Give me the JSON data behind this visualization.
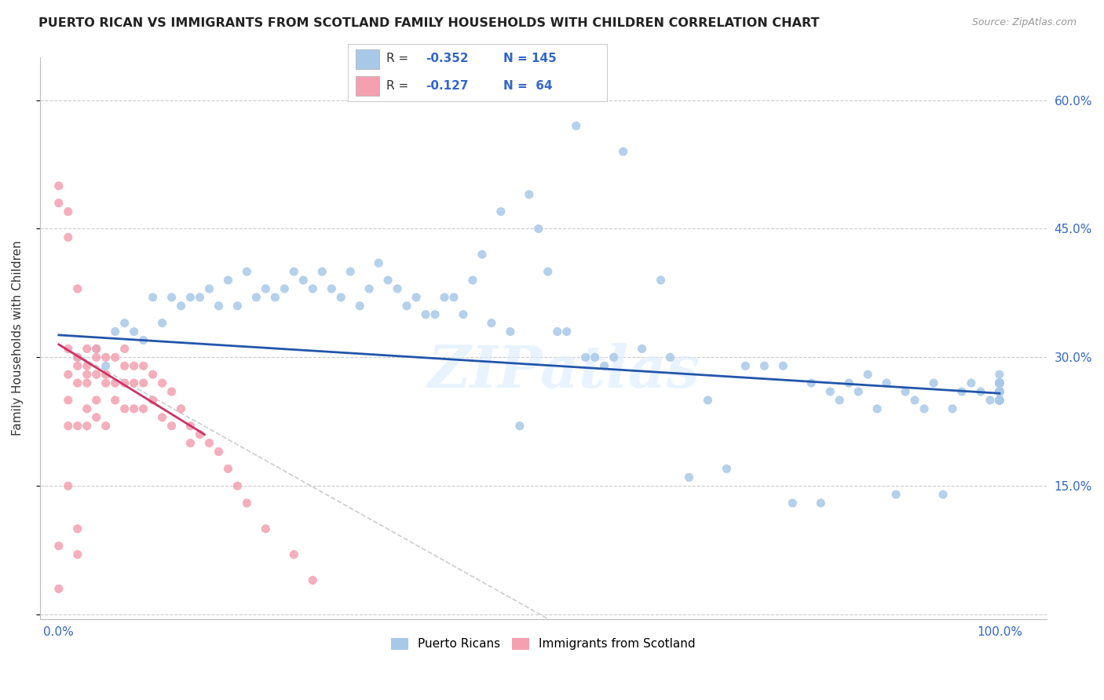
{
  "title": "PUERTO RICAN VS IMMIGRANTS FROM SCOTLAND FAMILY HOUSEHOLDS WITH CHILDREN CORRELATION CHART",
  "source": "Source: ZipAtlas.com",
  "ylabel": "Family Households with Children",
  "watermark": "ZIPatlas",
  "blue_color": "#a8c8e8",
  "pink_color": "#f4a0b0",
  "trendline_blue": "#2255aa",
  "trendline_pink": "#cc3366",
  "trendline_gray": "#cccccc",
  "yticks": [
    0.0,
    0.15,
    0.3,
    0.45,
    0.6
  ],
  "ytick_labels": [
    "",
    "15.0%",
    "30.0%",
    "45.0%",
    "60.0%"
  ],
  "xticks": [
    0.0,
    0.1,
    0.2,
    0.3,
    0.4,
    0.5,
    0.6,
    0.7,
    0.8,
    0.9,
    1.0
  ],
  "xtick_labels": [
    "0.0%",
    "",
    "",
    "",
    "",
    "",
    "",
    "",
    "",
    "",
    "100.0%"
  ],
  "xlim": [
    -0.02,
    1.05
  ],
  "ylim": [
    -0.005,
    0.65
  ],
  "blue_points_x": [
    0.02,
    0.04,
    0.05,
    0.06,
    0.07,
    0.08,
    0.09,
    0.1,
    0.11,
    0.12,
    0.13,
    0.14,
    0.15,
    0.16,
    0.17,
    0.18,
    0.19,
    0.2,
    0.21,
    0.22,
    0.23,
    0.24,
    0.25,
    0.26,
    0.27,
    0.28,
    0.29,
    0.3,
    0.31,
    0.32,
    0.33,
    0.34,
    0.35,
    0.36,
    0.37,
    0.38,
    0.39,
    0.4,
    0.41,
    0.42,
    0.43,
    0.44,
    0.45,
    0.46,
    0.47,
    0.48,
    0.49,
    0.5,
    0.51,
    0.52,
    0.53,
    0.54,
    0.55,
    0.56,
    0.57,
    0.58,
    0.59,
    0.6,
    0.62,
    0.64,
    0.65,
    0.67,
    0.69,
    0.71,
    0.73,
    0.75,
    0.77,
    0.78,
    0.8,
    0.81,
    0.82,
    0.83,
    0.84,
    0.85,
    0.86,
    0.87,
    0.88,
    0.89,
    0.9,
    0.91,
    0.92,
    0.93,
    0.94,
    0.95,
    0.96,
    0.97,
    0.98,
    0.99,
    1.0,
    1.0,
    1.0,
    1.0,
    1.0,
    1.0,
    1.0,
    1.0,
    1.0,
    1.0,
    1.0,
    1.0,
    1.0,
    1.0,
    1.0,
    1.0,
    1.0,
    1.0,
    1.0,
    1.0,
    1.0,
    1.0,
    1.0,
    1.0,
    1.0,
    1.0,
    1.0,
    1.0,
    1.0,
    1.0,
    1.0,
    1.0,
    1.0,
    1.0,
    1.0,
    1.0,
    1.0,
    1.0,
    1.0,
    1.0,
    1.0,
    1.0,
    1.0,
    1.0,
    1.0,
    1.0,
    1.0,
    1.0,
    1.0,
    1.0,
    1.0,
    1.0,
    1.0,
    1.0
  ],
  "blue_points_y": [
    0.3,
    0.31,
    0.29,
    0.33,
    0.34,
    0.33,
    0.32,
    0.37,
    0.34,
    0.37,
    0.36,
    0.37,
    0.37,
    0.38,
    0.36,
    0.39,
    0.36,
    0.4,
    0.37,
    0.38,
    0.37,
    0.38,
    0.4,
    0.39,
    0.38,
    0.4,
    0.38,
    0.37,
    0.4,
    0.36,
    0.38,
    0.41,
    0.39,
    0.38,
    0.36,
    0.37,
    0.35,
    0.35,
    0.37,
    0.37,
    0.35,
    0.39,
    0.42,
    0.34,
    0.47,
    0.33,
    0.22,
    0.49,
    0.45,
    0.4,
    0.33,
    0.33,
    0.57,
    0.3,
    0.3,
    0.29,
    0.3,
    0.54,
    0.31,
    0.39,
    0.3,
    0.16,
    0.25,
    0.17,
    0.29,
    0.29,
    0.29,
    0.13,
    0.27,
    0.13,
    0.26,
    0.25,
    0.27,
    0.26,
    0.28,
    0.24,
    0.27,
    0.14,
    0.26,
    0.25,
    0.24,
    0.27,
    0.14,
    0.24,
    0.26,
    0.27,
    0.26,
    0.25,
    0.28,
    0.27,
    0.26,
    0.26,
    0.27,
    0.25,
    0.26,
    0.27,
    0.26,
    0.27,
    0.26,
    0.25,
    0.26,
    0.25,
    0.27,
    0.25,
    0.26,
    0.27,
    0.26,
    0.27,
    0.25,
    0.26,
    0.26,
    0.25,
    0.27,
    0.26,
    0.25,
    0.26,
    0.27,
    0.25,
    0.26,
    0.25,
    0.26,
    0.25,
    0.25,
    0.27,
    0.26,
    0.25,
    0.27,
    0.26,
    0.25,
    0.26,
    0.27,
    0.25,
    0.26,
    0.25,
    0.26,
    0.27,
    0.25,
    0.26,
    0.25,
    0.27,
    0.26,
    0.25
  ],
  "pink_points_x": [
    0.0,
    0.0,
    0.0,
    0.01,
    0.01,
    0.01,
    0.01,
    0.01,
    0.01,
    0.02,
    0.02,
    0.02,
    0.02,
    0.02,
    0.02,
    0.02,
    0.03,
    0.03,
    0.03,
    0.03,
    0.03,
    0.03,
    0.04,
    0.04,
    0.04,
    0.04,
    0.04,
    0.05,
    0.05,
    0.05,
    0.05,
    0.06,
    0.06,
    0.06,
    0.07,
    0.07,
    0.07,
    0.07,
    0.08,
    0.08,
    0.08,
    0.09,
    0.09,
    0.09,
    0.1,
    0.1,
    0.11,
    0.11,
    0.12,
    0.12,
    0.13,
    0.14,
    0.14,
    0.15,
    0.16,
    0.17,
    0.18,
    0.19,
    0.2,
    0.22,
    0.25,
    0.27,
    0.01,
    0.0
  ],
  "pink_points_y": [
    0.5,
    0.48,
    0.08,
    0.44,
    0.31,
    0.28,
    0.25,
    0.22,
    0.15,
    0.38,
    0.3,
    0.29,
    0.27,
    0.22,
    0.1,
    0.07,
    0.31,
    0.29,
    0.28,
    0.27,
    0.24,
    0.22,
    0.31,
    0.3,
    0.28,
    0.25,
    0.23,
    0.3,
    0.28,
    0.27,
    0.22,
    0.3,
    0.27,
    0.25,
    0.31,
    0.29,
    0.27,
    0.24,
    0.29,
    0.27,
    0.24,
    0.29,
    0.27,
    0.24,
    0.28,
    0.25,
    0.27,
    0.23,
    0.26,
    0.22,
    0.24,
    0.22,
    0.2,
    0.21,
    0.2,
    0.19,
    0.17,
    0.15,
    0.13,
    0.1,
    0.07,
    0.04,
    0.47,
    0.03
  ],
  "blue_trend_x": [
    0.0,
    1.0
  ],
  "blue_trend_y": [
    0.326,
    0.258
  ],
  "pink_trend_x": [
    0.0,
    0.155
  ],
  "pink_trend_y": [
    0.315,
    0.21
  ],
  "gray_trend_x": [
    0.0,
    0.52
  ],
  "gray_trend_y": [
    0.315,
    -0.005
  ],
  "legend_labels": [
    "Puerto Ricans",
    "Immigrants from Scotland"
  ],
  "background_color": "#ffffff",
  "grid_color": "#cccccc"
}
